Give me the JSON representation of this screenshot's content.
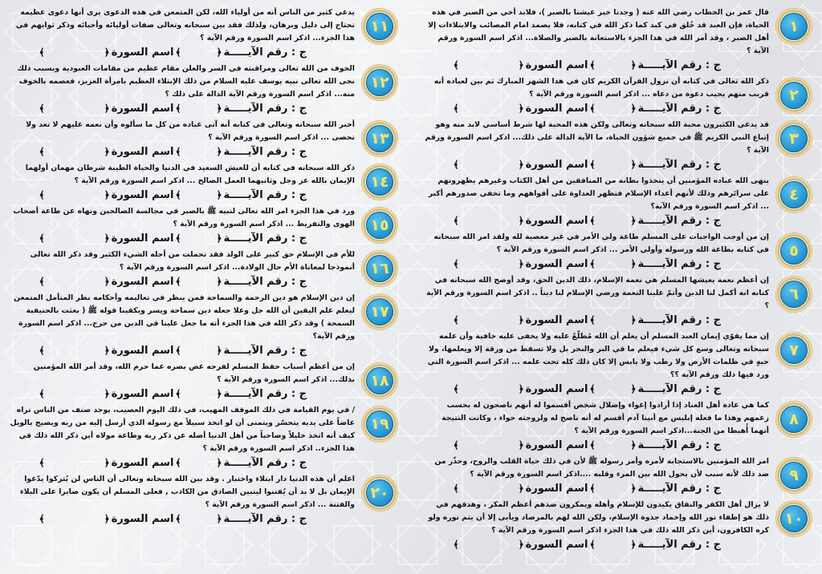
{
  "answer_line": {
    "prefix": "ج : رقم الآيـــــة",
    "surah_label": "اسم السورة",
    "open_bracket": "﴿",
    "close_bracket": "﴾"
  },
  "colors": {
    "badge_blue": "#1f8fcf",
    "badge_numeral": "#f4e36a",
    "badge_ring": "#c9a862",
    "text": "#111111"
  },
  "questions": [
    {
      "number": "١",
      "text": "قال عمر بن الخطاب رضي الله عنه ( وجدنا خير عيشنا بالصبر )، فلابد أخي من الصبر في هذه الحياة، فإن العبد قد خُلق في كبد كما ذكر الله في كتابه، فلا يصمد امام المصائب والابتلاءات إلا أهل الصبر ، وقد أمر الله في هذا الجزء بالاستعانة بالصبر والصلاة... اذكر اسم السورة ورقم الآية ؟"
    },
    {
      "number": "٢",
      "text": "ذكر الله تعالى في كتابه أن نزول القرآن الكريم كان في هذا الشهر المبارك ثم بين لعباده أنه قريب منهم يجيب دعوة من دعاه ... اذكر اسم السورة ورقم الآية ؟"
    },
    {
      "number": "٣",
      "text": "قد يدعي الكثيرون محبة الله سبحانه وتعالى ولكن هذه المحبة لها شرط أساسي لابد منه وهو إتباع النبي الكريم ﷺ في جميع شؤون الحياة، ما الآية الدالة على ذلك... اذكر اسم السورة ورقم الآية ؟"
    },
    {
      "number": "٤",
      "text": "ينهى الله عباده المؤمنين أن يتخذوا بطانة من المنافقين من أهل الكتاب وغيرهم يظهرونهم على سرائرهم وذلك لأنهم أعداء الإسلام فتظهر العداوة على أفواههم وما تخفي صدورهم أكبر ... اذكر اسم السورة ورقم الآية؟"
    },
    {
      "number": "٥",
      "text": "إن من أوجب الواجبات على المسلم طاعة ولي الأمر في غير معصية لله ولقد امر الله سبحانه في كتابه بطاعة الله ورسوله وأولي الأمر ... اذكر اسم السورة ورقم الآية ؟"
    },
    {
      "number": "٦",
      "text": "إن أعظم نعمة يعيشها المسلم هي نعمة الإسلام، ذلك الدين الحق، وقد أوضح الله سبحانه في كتابه انه أكمل لنا الدين وأتمّ علينا النعمة ورضي الإسلام لنا ديناً .. اذكر اسم السورة ورقم الآية ؟"
    },
    {
      "number": "٧",
      "text": "إن مما يقوّي إيمان العبد المسلم أن يعلم أن الله مُطلّعٌ عليه ولا يخفى عليه خافية وأن علمه سبحانه وتعالى وسع كل شيء فيعلم ما في البر والبحر بل ولا تسقط من ورقة إلا ويعلمها، ولا حبةٍ في ظلمات الأرض ولا رطب ولا يابس إلا كان ذلك كله تحت علمه ... اذكر اسم السورة التي ورد فيها ذلك ورقم الآية ؟؟"
    },
    {
      "number": "٨",
      "text": "كما هي عادة أهل العناد إذا أرادوا إغواء وإضلال شخص أقسموا له أنهم ناصحون له بحسب زعمهم وهذا ما فعله إبليس مع أبينا آدم أقسم له أنه ناصح له ولزوجته حواء ، وكانت النتيجة أنهما أُهبطا من الجنة...اذكر اسم السورة ورقم الآية ؟"
    },
    {
      "number": "٩",
      "text": "امر الله المؤمنين بالاستجابة لأمره وأمر رسوله ﷺ لأن في ذلك حياة القلب والروح، وحذّر من ضد ذلك لأنه سبب لأن يحول الله بين المرء وقلبه ....اذكر اسم السورة ورقم الآية ؟"
    },
    {
      "number": "١٠",
      "text": "لا يزال أهل الكفر والنفاق يكيدون للإسلام وأهله ويمكرون ضدهم أعظم المكر ، وهدفهم في ذلك هو إطفاء نور الله وإخماد جذوة الإسلام، ولكن الله لهم بالمرصاد ويأبى إلا أن يتم نوره ولو كره الكافرون، أين ذكر الله ذلك في هذا الجزء اذكر اسم السورة ورقم الآية ؟"
    },
    {
      "number": "١١",
      "text": "يدعي كثير من الناس أنه من أولياء الله، لكن المتمعن في هذه الدعوى يرى أنها دعوى عظيمه تحتاج إلى دليل وبرهان، ولذلك فقد بين سبحانه وتعالى صفات أوليائه وأحبائه وذكر ثوابهم في هذا الجزء... اذكر اسم السورة ورقم الآية ؟"
    },
    {
      "number": "١٢",
      "text": "الخوف من الله تعالى ومراقبته في السر والعلن مقام عظيم من مقامات العبودية وبسبب ذلك نجى الله تعالى نبيه يوسف عليه السلام من ذلك الإبتلاء العظيم بامرأة العزيز، فعصمه بالخوف منه... اذكر اسم السورة ورقم الآية الدالة على ذلك ؟"
    },
    {
      "number": "١٣",
      "text": "أخبر الله سبحانه وتعالى في كتابه أنه آتى عباده من كل ما سألوه وأن نعمه عليهم لا تعد ولا تحصى ... اذكر اسم السورة ورقم الآية ؟"
    },
    {
      "number": "١٤",
      "text": "ذكر الله سبحانه في كتابه أن للعيش السعيد في الدنيا والحياة الطيبة شرطان مهمان أولهما الإيمان بالله عز وجل وثانيهما العمل الصالح ... اذكر اسم السورة ورقم الآية ؟"
    },
    {
      "number": "١٥",
      "text": "ورد في هذا الجزء امر الله تعالى لنبيه ﷺ بالصبر في مجالسة الصالحين ونهاه عن طاعة أصحاب الهوى والتفريط ... اذكر اسم السورة ورقم الآية ؟"
    },
    {
      "number": "١٦",
      "text": "للأم في الإسلام حق كبير على الولد فقد تحملت من أجله الشيء الكثير وقد ذكر الله تعالى أنموذجا لمعاناة الأم حال الولادة... اذكر اسم السورة ورقم الآية ؟"
    },
    {
      "number": "١٧",
      "text": "إن دين الإسلام هو دين الرحمة والسماحة فمن ينظر في تعاليمه وأحكامه نظر المتأمل المتمعن ليعلم علم اليقين أن الله جل وعلا جعله دين سماحة ويسر ويكفينا قوله ﷺ ( بعثت بالحنيفية السمحة ) وقد ذكر الله في هذا الجزء أنه ما جعل علينا في الدين من حرج... اذكر اسم السورة ورقم الآية؟"
    },
    {
      "number": "١٨",
      "text": "إن من أعظم أسباب حفظ المسلم لفرجه غض بصره عما حرم الله، وقد أمر الله المؤمنين بذلك... اذكر اسم السورة ورقم الآية ؟"
    },
    {
      "number": "١٩",
      "text": "/ في يوم القيامة في ذلك الموقف المهيب، في ذلك اليوم العصيب، يوجد صنف من الناس تراه عاضاً على يديه يتحسّر ويتمنى أن لو اتخذ سبيلاً مع رسوله الذي أرسل إليه من ربه ويصيح بالويل كيف أنه اتخذ خليلاً وصاحباً من أهل الدنيا أضله عن ذكر ربه وطاعة مولاه أين ذكر الله ذلك في هذا الجزء.. اذكر اسم السورة ورقم الآية ؟"
    },
    {
      "number": "٢٠",
      "text": "اعلم أن هذه الدنيا دار ابتلاء واختبار . وقد بين الله سبحانه وتعالى أن الناس لن يُتركوا يدّعوا الإيمان بل لا بد أن يُفتنوا ليتبين الصادق من الكاذب , فعلى المسلم أن يكون صابرا على البلاء والفتنة ... اذكر اسم السورة ورقم الآية ؟"
    }
  ]
}
